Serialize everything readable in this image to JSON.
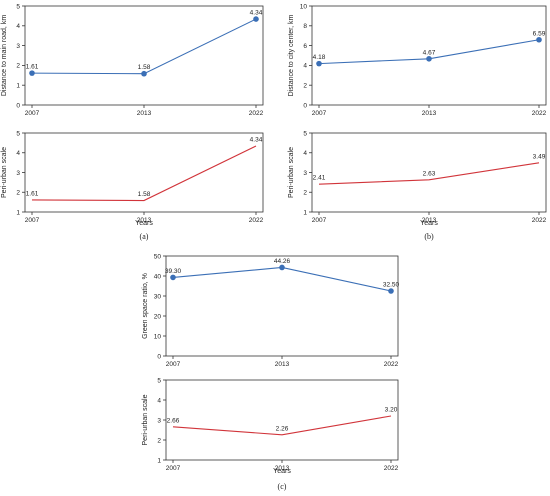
{
  "colors": {
    "blue": "#3b6fb6",
    "red": "#d1343a"
  },
  "chart_data": [
    {
      "type": "line",
      "panel": "a",
      "position": "top",
      "categories": [
        "2007",
        "2013",
        "2022"
      ],
      "series": [
        {
          "values": [
            1.61,
            1.58,
            4.34
          ],
          "color": "blue",
          "markers": true
        }
      ],
      "data_labels": [
        "1.61",
        "1.58",
        "4.34"
      ],
      "ylabel": "Distance to main road, km",
      "xlabel": "",
      "ylim": [
        0,
        5
      ],
      "yticks": [
        "0",
        "1",
        "2",
        "3",
        "4",
        "5"
      ]
    },
    {
      "type": "line",
      "panel": "a",
      "position": "bottom",
      "categories": [
        "2007",
        "2013",
        "2022"
      ],
      "series": [
        {
          "values": [
            1.61,
            1.58,
            4.34
          ],
          "color": "red",
          "markers": false
        }
      ],
      "data_labels": [
        "1.61",
        "1.58",
        "4.34"
      ],
      "ylabel": "Peri-urban scale",
      "xlabel": "Years",
      "ylim": [
        1,
        5
      ],
      "yticks": [
        "1",
        "2",
        "3",
        "4",
        "5"
      ],
      "caption": "(a)"
    },
    {
      "type": "line",
      "panel": "b",
      "position": "top",
      "categories": [
        "2007",
        "2013",
        "2022"
      ],
      "series": [
        {
          "values": [
            4.18,
            4.67,
            6.59
          ],
          "color": "blue",
          "markers": true
        }
      ],
      "data_labels": [
        "4.18",
        "4.67",
        "6.59"
      ],
      "ylabel": "Distance to city center, km",
      "xlabel": "",
      "ylim": [
        0,
        10
      ],
      "yticks": [
        "0",
        "2",
        "4",
        "6",
        "8",
        "10"
      ]
    },
    {
      "type": "line",
      "panel": "b",
      "position": "bottom",
      "categories": [
        "2007",
        "2013",
        "2022"
      ],
      "series": [
        {
          "values": [
            2.41,
            2.63,
            3.49
          ],
          "color": "red",
          "markers": false
        }
      ],
      "data_labels": [
        "2.41",
        "2.63",
        "3.49"
      ],
      "ylabel": "Peri-urban scale",
      "xlabel": "Years",
      "ylim": [
        1,
        5
      ],
      "yticks": [
        "1",
        "2",
        "3",
        "4",
        "5"
      ],
      "caption": "(b)"
    },
    {
      "type": "line",
      "panel": "c",
      "position": "top",
      "categories": [
        "2007",
        "2013",
        "2022"
      ],
      "series": [
        {
          "values": [
            39.3,
            44.26,
            32.5
          ],
          "color": "blue",
          "markers": true
        }
      ],
      "data_labels": [
        "39.30",
        "44.26",
        "32.50"
      ],
      "ylabel": "Green space ratio, %",
      "xlabel": "",
      "ylim": [
        0,
        50
      ],
      "yticks": [
        "0",
        "10",
        "20",
        "30",
        "40",
        "50"
      ]
    },
    {
      "type": "line",
      "panel": "c",
      "position": "bottom",
      "categories": [
        "2007",
        "2013",
        "2022"
      ],
      "series": [
        {
          "values": [
            2.66,
            2.26,
            3.2
          ],
          "color": "red",
          "markers": false
        }
      ],
      "data_labels": [
        "2.66",
        "2.26",
        "3.20"
      ],
      "ylabel": "Peri-urban scale",
      "xlabel": "Years",
      "ylim": [
        1,
        5
      ],
      "yticks": [
        "1",
        "2",
        "3",
        "4",
        "5"
      ],
      "caption": "(c)"
    }
  ]
}
